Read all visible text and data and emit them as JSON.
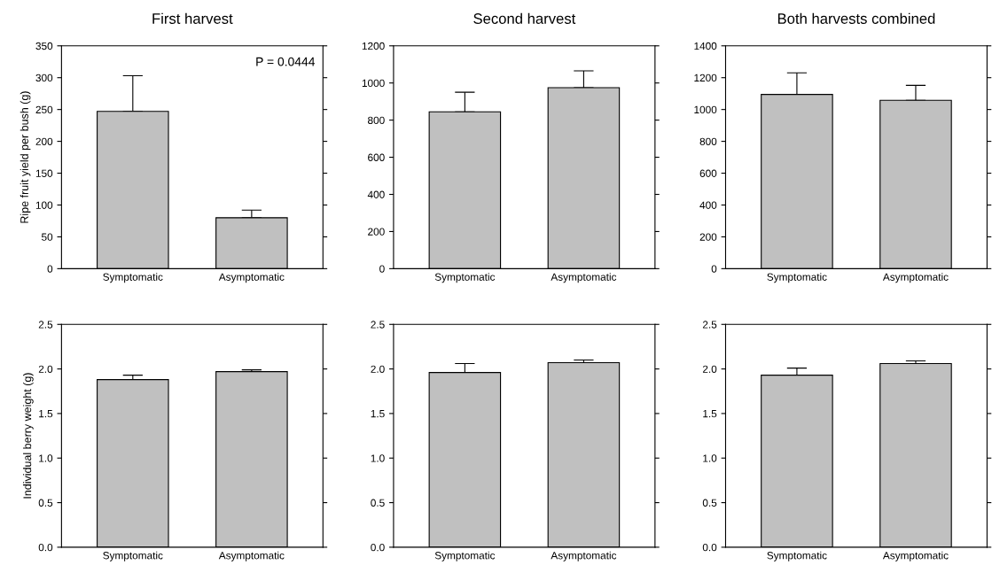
{
  "chart_data": [
    {
      "type": "bar",
      "title": "First harvest",
      "ylabel": "Ripe fruit yield per bush (g)",
      "categories": [
        "Symptomatic",
        "Asymptomatic"
      ],
      "values": [
        247,
        80
      ],
      "errors": [
        [
          247,
          303
        ],
        [
          80,
          92
        ]
      ],
      "color": "#c0c0c0",
      "ylim": [
        0,
        350
      ],
      "yticks": [
        0,
        50,
        100,
        150,
        200,
        250,
        300,
        350
      ],
      "annotations": [
        "P = 0.0444"
      ]
    },
    {
      "type": "bar",
      "title": "Second harvest",
      "categories": [
        "Symptomatic",
        "Asymptomatic"
      ],
      "values": [
        845,
        975
      ],
      "errors": [
        [
          845,
          950
        ],
        [
          975,
          1065
        ]
      ],
      "color": "#c0c0c0",
      "ylim": [
        0,
        1200
      ],
      "yticks": [
        0,
        200,
        400,
        600,
        800,
        1000,
        1200
      ]
    },
    {
      "type": "bar",
      "title": "Both harvests combined",
      "categories": [
        "Symptomatic",
        "Asymptomatic"
      ],
      "values": [
        1095,
        1058
      ],
      "errors": [
        [
          1095,
          1230
        ],
        [
          1058,
          1152
        ]
      ],
      "color": "#c0c0c0",
      "ylim": [
        0,
        1400
      ],
      "yticks": [
        0,
        200,
        400,
        600,
        800,
        1000,
        1200,
        1400
      ]
    },
    {
      "type": "bar",
      "ylabel": "Individual berry weight (g)",
      "categories": [
        "Symptomatic",
        "Asymptomatic"
      ],
      "values": [
        1.88,
        1.97
      ],
      "errors": [
        [
          1.88,
          1.93
        ],
        [
          1.97,
          1.99
        ]
      ],
      "color": "#c0c0c0",
      "ylim": [
        0,
        2.5
      ],
      "yticks": [
        {
          "value": 0,
          "label": "0.0"
        },
        {
          "value": 0.5,
          "label": "0.5"
        },
        {
          "value": 1,
          "label": "1.0"
        },
        {
          "value": 1.5,
          "label": "1.5"
        },
        {
          "value": 2,
          "label": "2.0"
        },
        {
          "value": 2.5,
          "label": "2.5"
        }
      ]
    },
    {
      "type": "bar",
      "categories": [
        "Symptomatic",
        "Asymptomatic"
      ],
      "values": [
        1.96,
        2.07
      ],
      "errors": [
        [
          1.96,
          2.06
        ],
        [
          2.07,
          2.1
        ]
      ],
      "color": "#c0c0c0",
      "ylim": [
        0,
        2.5
      ],
      "yticks": [
        {
          "value": 0,
          "label": "0.0"
        },
        {
          "value": 0.5,
          "label": "0.5"
        },
        {
          "value": 1,
          "label": "1.0"
        },
        {
          "value": 1.5,
          "label": "1.5"
        },
        {
          "value": 2,
          "label": "2.0"
        },
        {
          "value": 2.5,
          "label": "2.5"
        }
      ]
    },
    {
      "type": "bar",
      "categories": [
        "Symptomatic",
        "Asymptomatic"
      ],
      "values": [
        1.93,
        2.06
      ],
      "errors": [
        [
          1.93,
          2.01
        ],
        [
          2.06,
          2.09
        ]
      ],
      "color": "#c0c0c0",
      "ylim": [
        0,
        2.5
      ],
      "yticks": [
        {
          "value": 0,
          "label": "0.0"
        },
        {
          "value": 0.5,
          "label": "0.5"
        },
        {
          "value": 1,
          "label": "1.0"
        },
        {
          "value": 1.5,
          "label": "1.5"
        },
        {
          "value": 2,
          "label": "2.0"
        },
        {
          "value": 2.5,
          "label": "2.5"
        }
      ]
    }
  ]
}
